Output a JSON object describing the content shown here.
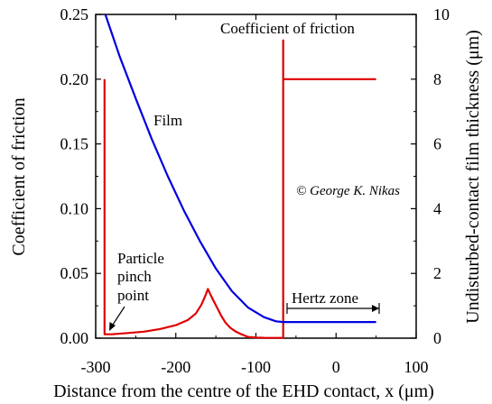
{
  "chart_data": {
    "type": "line",
    "xlabel": "Distance from the centre of the EHD contact, x (μm)",
    "ylabel_left": "Coefficient of friction",
    "ylabel_right": "Undisturbed-contact film thickness (μm)",
    "xlim": [
      -300,
      100
    ],
    "ylim_left": [
      0,
      0.25
    ],
    "ylim_right": [
      0,
      10
    ],
    "x_ticks": [
      -300,
      -200,
      -100,
      0,
      100
    ],
    "y_ticks_left": [
      0,
      0.05,
      0.1,
      0.15,
      0.2,
      0.25
    ],
    "y_ticks_right": [
      0,
      2,
      4,
      6,
      8,
      10
    ],
    "x_tick_labels": [
      "-300",
      "-200",
      "-100",
      "0",
      "100"
    ],
    "y_tick_labels_left": [
      "0.00",
      "0.05",
      "0.10",
      "0.15",
      "0.20",
      "0.25"
    ],
    "y_tick_labels_right": [
      "0",
      "2",
      "4",
      "6",
      "8",
      "10"
    ],
    "grid": false,
    "series": [
      {
        "axis": "left",
        "color": "#e00000",
        "x": [
          -289,
          -289,
          -289,
          -280,
          -260,
          -240,
          -220,
          -200,
          -185,
          -175,
          -168,
          -163,
          -160,
          -157,
          -153,
          -148,
          -143,
          -138,
          -132,
          -125,
          -118,
          -110,
          -100,
          -90,
          -80,
          -70,
          -66,
          -66,
          -66,
          50
        ],
        "y": [
          0.2,
          0.003,
          0.003,
          0.003,
          0.004,
          0.005,
          0.007,
          0.01,
          0.014,
          0.019,
          0.026,
          0.033,
          0.038,
          0.034,
          0.029,
          0.023,
          0.017,
          0.012,
          0.008,
          0.005,
          0.003,
          0.001,
          0.0005,
          0.0003,
          0.0002,
          0.0002,
          0.0002,
          0.23,
          0.2,
          0.2
        ]
      },
      {
        "axis": "right",
        "color": "#0000e0",
        "x": [
          -288,
          -270,
          -250,
          -230,
          -210,
          -190,
          -170,
          -150,
          -130,
          -110,
          -90,
          -75,
          -66,
          50
        ],
        "y": [
          10,
          8.7,
          7.4,
          6.15,
          5.0,
          3.95,
          3.0,
          2.15,
          1.45,
          0.95,
          0.65,
          0.52,
          0.5,
          0.5
        ]
      }
    ]
  },
  "annotations": {
    "friction_label": "Coefficient of friction",
    "film_label": "Film",
    "copyright": "© George K. Nikas",
    "particle_lines": [
      "Particle",
      "pinch",
      "point"
    ],
    "hertz_label": "Hertz zone"
  }
}
